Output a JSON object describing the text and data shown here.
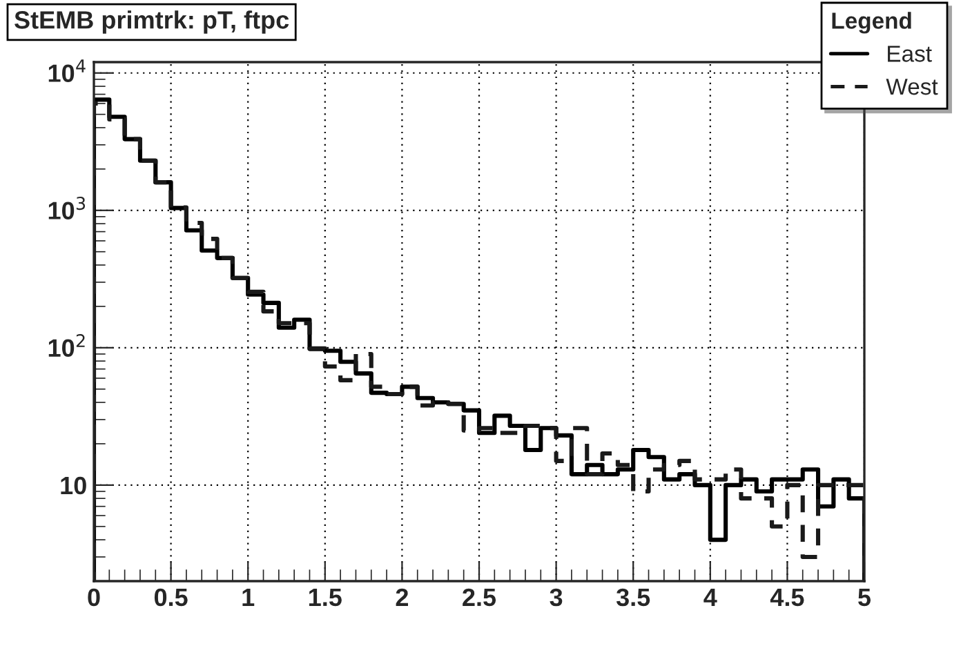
{
  "chart_data": {
    "type": "histogram",
    "title": "StEMB primtrk: pT, ftpc",
    "legend_title": "Legend",
    "bins": [
      0,
      0.1,
      0.2,
      0.3,
      0.4,
      0.5,
      0.6,
      0.7,
      0.8,
      0.9,
      1.0,
      1.1,
      1.2,
      1.3,
      1.4,
      1.5,
      1.6,
      1.7,
      1.8,
      1.9,
      2.0,
      2.1,
      2.2,
      2.3,
      2.4,
      2.5,
      2.6,
      2.7,
      2.8,
      2.9,
      3.0,
      3.1,
      3.2,
      3.3,
      3.4,
      3.5,
      3.6,
      3.7,
      3.8,
      3.9,
      4.0,
      4.1,
      4.2,
      4.3,
      4.4,
      4.5,
      4.6,
      4.7,
      4.8,
      4.9,
      5.0
    ],
    "series": [
      {
        "name": "East",
        "color": "#000000",
        "line_style": "solid",
        "values": [
          6400,
          4800,
          3300,
          2300,
          1600,
          1040,
          715,
          510,
          450,
          322,
          244,
          212,
          140,
          160,
          98,
          95,
          79,
          65,
          47,
          46,
          52,
          43,
          40,
          39,
          35,
          24,
          32,
          27,
          18,
          26,
          23,
          12,
          14,
          12,
          13,
          18,
          16,
          11,
          12,
          10,
          4,
          10,
          11,
          9,
          11,
          11,
          13,
          7,
          11,
          8
        ]
      },
      {
        "name": "West",
        "color": "#1a1a1a",
        "line_style": "dashed",
        "values": [
          6000,
          4600,
          3300,
          2300,
          1600,
          1050,
          810,
          620,
          450,
          322,
          255,
          184,
          151,
          151,
          99,
          73,
          58,
          90,
          52,
          46,
          52,
          38,
          40,
          39,
          25,
          26,
          24,
          24,
          27,
          26,
          15,
          26,
          12,
          17,
          14,
          9,
          13,
          14,
          15,
          11,
          11,
          13,
          8,
          8,
          5,
          10,
          3,
          10,
          10,
          10
        ]
      }
    ],
    "xlim": [
      0,
      5
    ],
    "xticks": [
      0,
      0.5,
      1,
      1.5,
      2,
      2.5,
      3,
      3.5,
      4,
      4.5,
      5
    ],
    "ylim": [
      2,
      12000
    ],
    "log": true,
    "yticks": [
      10,
      {
        "value": 100,
        "label": "10$^{2}$"
      },
      {
        "value": 1000,
        "label": "10$^{3}$"
      },
      {
        "value": 10000,
        "label": "10$^{4}$"
      }
    ],
    "grid": true,
    "legend": "top right"
  }
}
